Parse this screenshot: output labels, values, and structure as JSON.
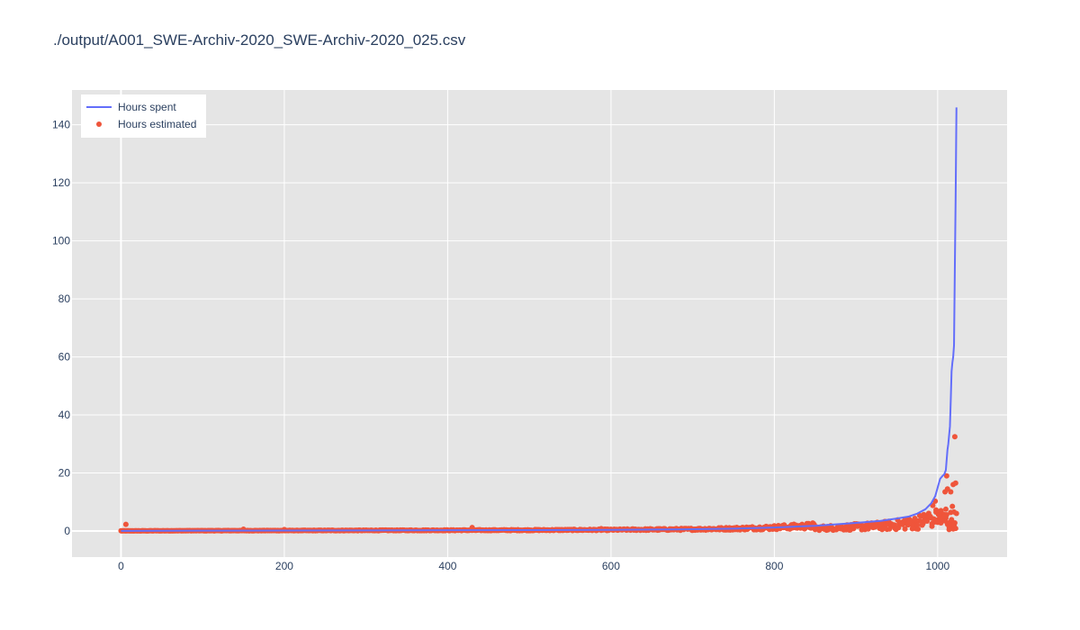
{
  "chart_data": {
    "type": "line+scatter",
    "title": "./output/A001_SWE-Archiv-2020_SWE-Archiv-2020_025.csv",
    "xlabel": "",
    "ylabel": "",
    "xlim": [
      -60,
      1085
    ],
    "ylim": [
      -9,
      152
    ],
    "xticks": [
      0,
      200,
      400,
      600,
      800,
      1000
    ],
    "yticks": [
      0,
      20,
      40,
      60,
      80,
      100,
      120,
      140
    ],
    "grid": true,
    "legend_position": "top-left",
    "colors": {
      "plot_background": "#e5e5e5",
      "grid": "#ffffff",
      "spent": "#636efa",
      "estimated": "#ef553b",
      "text": "#2a3f5f"
    },
    "series": [
      {
        "name": "Hours spent",
        "mode": "lines",
        "description_points_x": [
          0,
          100,
          200,
          300,
          400,
          500,
          600,
          650,
          700,
          750,
          800,
          850,
          900,
          930,
          950,
          965,
          975,
          985,
          992,
          997,
          1000,
          1003,
          1006,
          1008,
          1010,
          1012,
          1013,
          1014,
          1015,
          1016,
          1017,
          1018,
          1019,
          1020,
          1021,
          1022,
          1023
        ],
        "description_points_y": [
          0.05,
          0.1,
          0.15,
          0.2,
          0.25,
          0.3,
          0.4,
          0.5,
          0.6,
          0.8,
          1.2,
          1.8,
          2.8,
          3.5,
          4.3,
          5.0,
          6.0,
          7.5,
          9.5,
          12.0,
          15.0,
          18.0,
          19.0,
          19.5,
          21.0,
          28.0,
          30.0,
          33.0,
          36.0,
          45.0,
          55.0,
          58.0,
          60.0,
          64.0,
          90.0,
          115.0,
          146.0
        ]
      },
      {
        "name": "Hours estimated",
        "mode": "markers",
        "outliers_x": [
          6,
          150,
          200,
          430,
          588,
          720,
          780,
          930,
          960,
          965,
          975,
          985,
          990,
          993,
          996,
          998,
          1000,
          1002,
          1004,
          1006,
          1008,
          1009,
          1010,
          1011,
          1012,
          1014,
          1016,
          1018,
          1019,
          1020,
          1021,
          1022
        ],
        "outliers_y": [
          2.3,
          0.6,
          0.5,
          1.2,
          0.8,
          0.9,
          1.0,
          2.5,
          4.0,
          3.0,
          2.0,
          3.5,
          5.0,
          2.5,
          4.0,
          6.5,
          3.0,
          5.5,
          7.0,
          4.5,
          5.0,
          13.5,
          7.5,
          19.0,
          14.5,
          0.5,
          13.5,
          8.5,
          16.0,
          2.0,
          32.5,
          16.5
        ]
      }
    ]
  }
}
